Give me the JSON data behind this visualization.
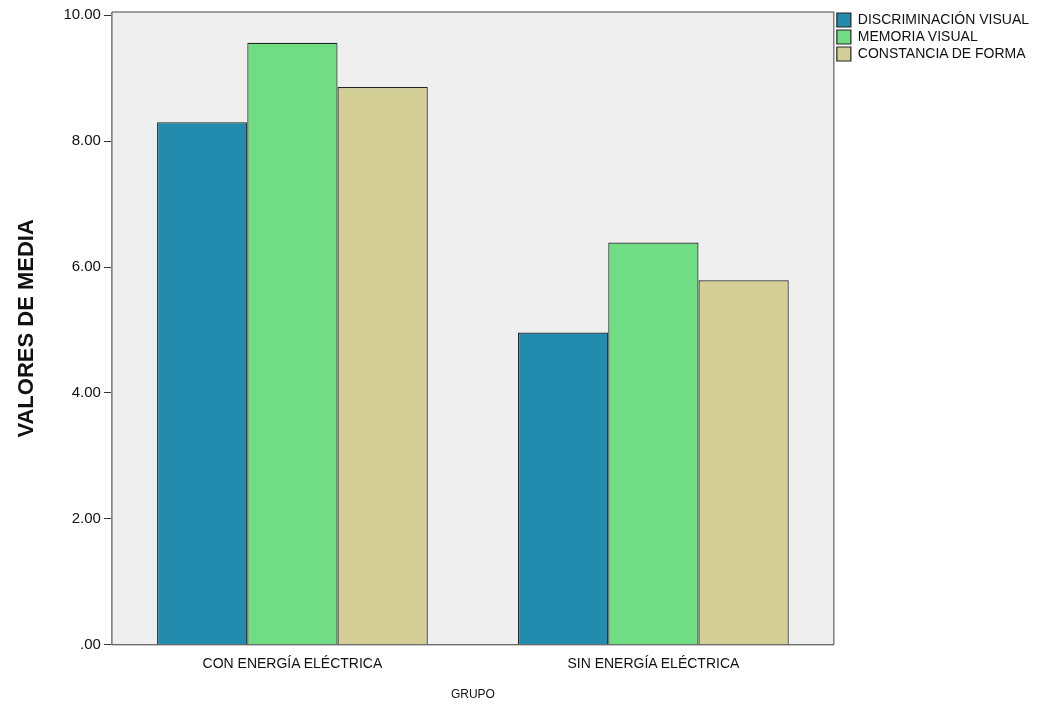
{
  "chart_data": {
    "type": "bar",
    "xlabel": "GRUPO",
    "ylabel": "VALORES DE MEDIA",
    "categories": [
      "CON ENERGÍA ELÉCTRICA",
      "SIN ENERGÍA ELÉCTRICA"
    ],
    "series": [
      {
        "name": "DISCRIMINACIÓN VISUAL",
        "color": "#238bad",
        "values": [
          8.3,
          4.96
        ]
      },
      {
        "name": "MEMORIA VISUAL",
        "color": "#70dd85",
        "values": [
          9.56,
          6.39
        ]
      },
      {
        "name": "CONSTANCIA DE FORMA",
        "color": "#d3cf96",
        "values": [
          8.86,
          5.79
        ]
      }
    ],
    "ylim": [
      0,
      10.05
    ],
    "yticks": [
      {
        "value": 0,
        "label": ".00"
      },
      {
        "value": 2,
        "label": "2.00"
      },
      {
        "value": 4,
        "label": "4.00"
      },
      {
        "value": 6,
        "label": "6.00"
      },
      {
        "value": 8,
        "label": "8.00"
      },
      {
        "value": 10,
        "label": "10.00"
      }
    ],
    "grid": false,
    "legend": "top right"
  }
}
